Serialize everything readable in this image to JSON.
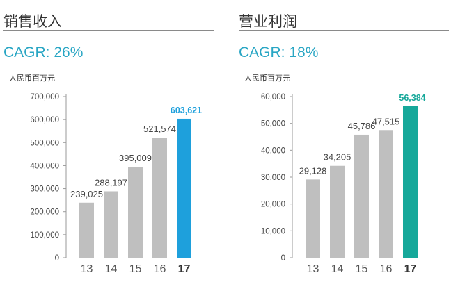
{
  "chart_data": [
    {
      "type": "bar",
      "title": "销售收入",
      "subtitle": "CAGR: 26%",
      "ylabel": "人民币百万元",
      "xlabel": "",
      "categories": [
        "13",
        "14",
        "15",
        "16",
        "17"
      ],
      "values": [
        239025,
        288197,
        395009,
        521574,
        603621
      ],
      "value_labels": [
        "239,025",
        "288,197",
        "395,009",
        "521,574",
        "603,621"
      ],
      "ylim": [
        0,
        700000
      ],
      "yticks": [
        0,
        100000,
        200000,
        300000,
        400000,
        500000,
        600000,
        700000
      ],
      "ytick_labels": [
        "0",
        "100,000",
        "200,000",
        "300,000",
        "400,000",
        "500,000",
        "600,000",
        "700,000"
      ],
      "grid": false,
      "colors": {
        "bar": "#bfbfbf",
        "highlight": "#1ea0dc",
        "accent": "#29a6c4",
        "label": "#444444"
      }
    },
    {
      "type": "bar",
      "title": "营业利润",
      "subtitle": "CAGR: 18%",
      "ylabel": "人民币百万元",
      "xlabel": "",
      "categories": [
        "13",
        "14",
        "15",
        "16",
        "17"
      ],
      "values": [
        29128,
        34205,
        45786,
        47515,
        56384
      ],
      "value_labels": [
        "29,128",
        "34,205",
        "45,786",
        "47,515",
        "56,384"
      ],
      "ylim": [
        0,
        60000
      ],
      "yticks": [
        0,
        10000,
        20000,
        30000,
        40000,
        50000,
        60000
      ],
      "ytick_labels": [
        "0",
        "10,000",
        "20,000",
        "30,000",
        "40,000",
        "50,000",
        "60,000"
      ],
      "grid": false,
      "colors": {
        "bar": "#bfbfbf",
        "highlight": "#16a89a",
        "accent": "#29a6c4",
        "label": "#444444"
      }
    }
  ]
}
